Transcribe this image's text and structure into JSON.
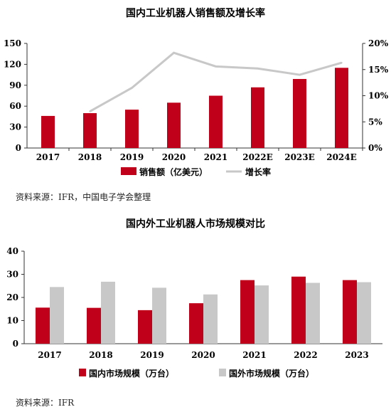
{
  "colors": {
    "bar_primary": "#c0001a",
    "bar_secondary": "#c8c8c8",
    "line": "#c8c8c8",
    "axis": "#333333"
  },
  "chart_data": [
    {
      "type": "bar",
      "title": "国内工业机器人销售额及增长率",
      "categories": [
        "2017",
        "2018",
        "2019",
        "2020",
        "2021",
        "2022E",
        "2023E",
        "2024E"
      ],
      "series": [
        {
          "name": "销售额（亿美元）",
          "type": "bar",
          "axis": "left",
          "values": [
            46,
            50,
            55,
            65,
            75,
            87,
            99,
            115
          ]
        },
        {
          "name": "增长率",
          "type": "line",
          "axis": "right",
          "values": [
            null,
            7,
            11.5,
            18.2,
            15.6,
            15.2,
            14,
            16.3
          ]
        }
      ],
      "ylim_left": [
        0,
        150
      ],
      "yticks_left": [
        "0",
        "30",
        "60",
        "90",
        "120",
        "150"
      ],
      "ylim_right": [
        0,
        20
      ],
      "yticks_right": [
        "0%",
        "5%",
        "10%",
        "15%",
        "20%"
      ],
      "grid": false,
      "legend_position": "bottom",
      "source": "资料来源：IFR，中国电子学会整理"
    },
    {
      "type": "bar",
      "title": "国内外工业机器人市场规模对比",
      "categories": [
        "2017",
        "2018",
        "2019",
        "2020",
        "2021",
        "2022",
        "2023"
      ],
      "series": [
        {
          "name": "国内市场规模（万台）",
          "values": [
            15.6,
            15.5,
            14.5,
            17.5,
            27.5,
            29,
            27.5
          ]
        },
        {
          "name": "国外市场规模（万台）",
          "values": [
            24.5,
            26.8,
            24.2,
            21.3,
            25.2,
            26.3,
            26.6
          ]
        }
      ],
      "ylim": [
        0,
        40
      ],
      "yticks": [
        "0",
        "10",
        "20",
        "30",
        "40"
      ],
      "grid": false,
      "legend_position": "bottom",
      "source": "资料来源：IFR"
    }
  ]
}
